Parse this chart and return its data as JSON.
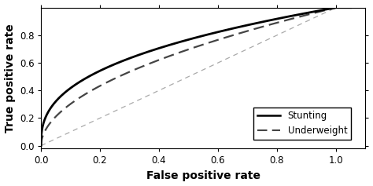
{
  "title": "",
  "xlabel": "False positive rate",
  "ylabel": "True positive rate",
  "xlim": [
    0.0,
    1.1
  ],
  "ylim": [
    -0.02,
    1.0
  ],
  "xticks": [
    0.0,
    0.2,
    0.4,
    0.6,
    0.8,
    1.0
  ],
  "yticks": [
    0.0,
    0.2,
    0.4,
    0.6,
    0.8
  ],
  "stunting_color": "#000000",
  "underweight_color": "#444444",
  "diagonal_color": "#aaaaaa",
  "background_color": "#ffffff",
  "legend_labels": [
    "Stunting",
    "Underweight"
  ],
  "figsize": [
    4.74,
    2.37
  ],
  "dpi": 100
}
